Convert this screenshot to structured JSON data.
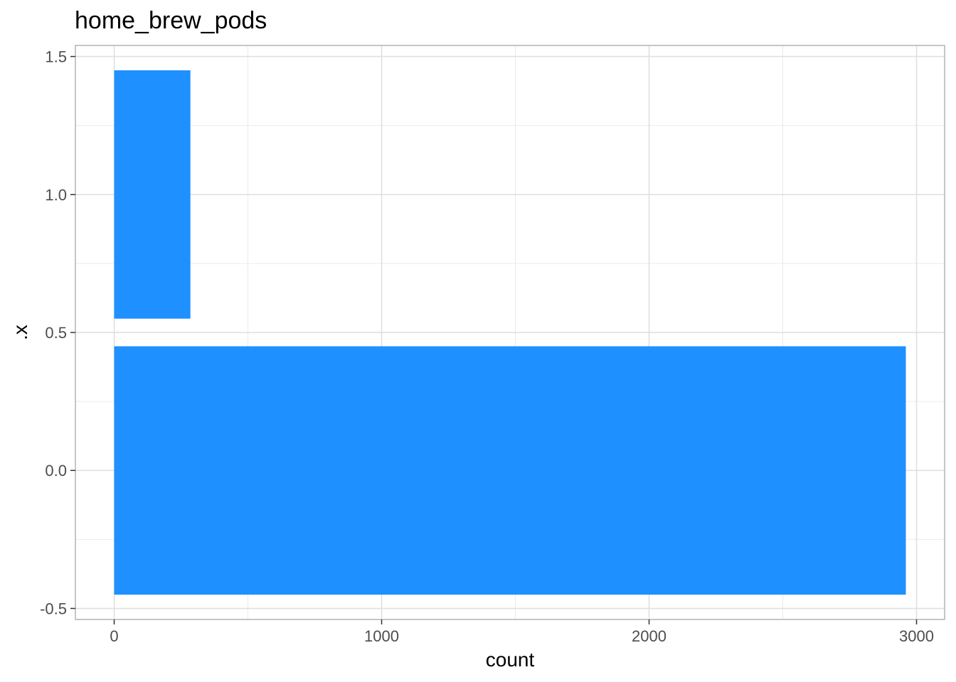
{
  "chart_data": {
    "type": "bar",
    "orientation": "horizontal",
    "title": "home_brew_pods",
    "xlabel": "count",
    "ylabel": ".x",
    "bars": [
      {
        "category": 0,
        "value": 2960,
        "y_from": -0.45,
        "y_to": 0.45
      },
      {
        "category": 1,
        "value": 285,
        "y_from": 0.55,
        "y_to": 1.45
      }
    ],
    "xlim": [
      -145,
      3105
    ],
    "ylim": [
      -0.54,
      1.54
    ],
    "x_ticks": [
      0,
      1000,
      2000,
      3000
    ],
    "x_tick_labels": [
      "0",
      "1000",
      "2000",
      "3000"
    ],
    "y_ticks": [
      -0.5,
      0.0,
      0.5,
      1.0,
      1.5
    ],
    "y_tick_labels": [
      "-0.5",
      "0.0",
      "0.5",
      "1.0",
      "1.5"
    ],
    "x_minor_ticks": [
      500,
      1500,
      2500
    ],
    "y_minor_ticks": [
      -0.25,
      0.25,
      0.75,
      1.25
    ],
    "grid": true,
    "bar_color": "#1E90FF",
    "grid_color": "#EBEBEB",
    "panel_border_color": "#B3B3B3"
  }
}
